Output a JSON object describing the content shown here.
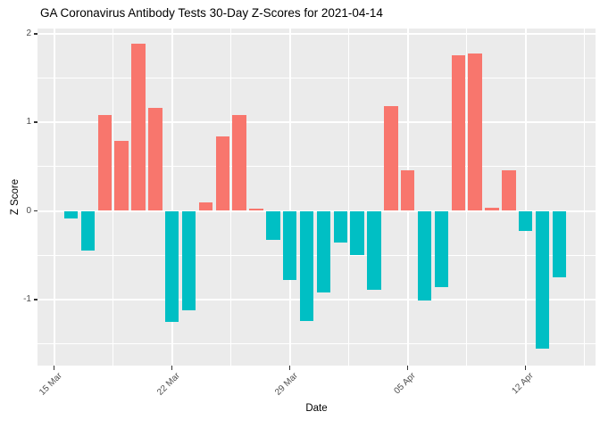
{
  "header": {
    "title": "GA Coronavirus Antibody Tests 30-Day Z-Scores for 2021-04-14"
  },
  "chart_data": {
    "type": "bar",
    "title": "GA Coronavirus Antibody Tests 30-Day Z-Scores for 2021-04-14",
    "xlabel": "Date",
    "ylabel": "Z Score",
    "x": [
      "2021-03-16",
      "2021-03-17",
      "2021-03-18",
      "2021-03-19",
      "2021-03-20",
      "2021-03-21",
      "2021-03-22",
      "2021-03-23",
      "2021-03-24",
      "2021-03-25",
      "2021-03-26",
      "2021-03-27",
      "2021-03-28",
      "2021-03-29",
      "2021-03-30",
      "2021-03-31",
      "2021-04-01",
      "2021-04-02",
      "2021-04-03",
      "2021-04-04",
      "2021-04-05",
      "2021-04-06",
      "2021-04-07",
      "2021-04-08",
      "2021-04-09",
      "2021-04-10",
      "2021-04-11",
      "2021-04-12",
      "2021-04-13",
      "2021-04-14"
    ],
    "values": [
      -0.09,
      -0.45,
      1.08,
      0.79,
      1.89,
      1.16,
      -1.25,
      -1.12,
      0.1,
      0.84,
      1.08,
      0.03,
      -0.33,
      -0.78,
      -1.24,
      -0.92,
      -0.36,
      -0.5,
      -0.89,
      1.18,
      0.46,
      -1.01,
      -0.86,
      1.76,
      1.78,
      0.04,
      0.46,
      -0.23,
      -1.56,
      -0.75
    ],
    "x_ticks": [
      {
        "date": "2021-03-15",
        "label": "15 Mar"
      },
      {
        "date": "2021-03-22",
        "label": "22 Mar"
      },
      {
        "date": "2021-03-29",
        "label": "29 Mar"
      },
      {
        "date": "2021-04-05",
        "label": "05 Apr"
      },
      {
        "date": "2021-04-12",
        "label": "12 Apr"
      }
    ],
    "y_ticks": [
      2,
      1,
      0,
      -1
    ],
    "ylim": [
      -1.75,
      2.06
    ],
    "grid": true,
    "legend": "none",
    "colors": {
      "positive": "#F8766D",
      "negative": "#00BFC4",
      "panel_bg": "#EBEBEB",
      "grid": "#FFFFFF",
      "axis_text": "#4D4D4D",
      "title_text": "#000000"
    }
  }
}
